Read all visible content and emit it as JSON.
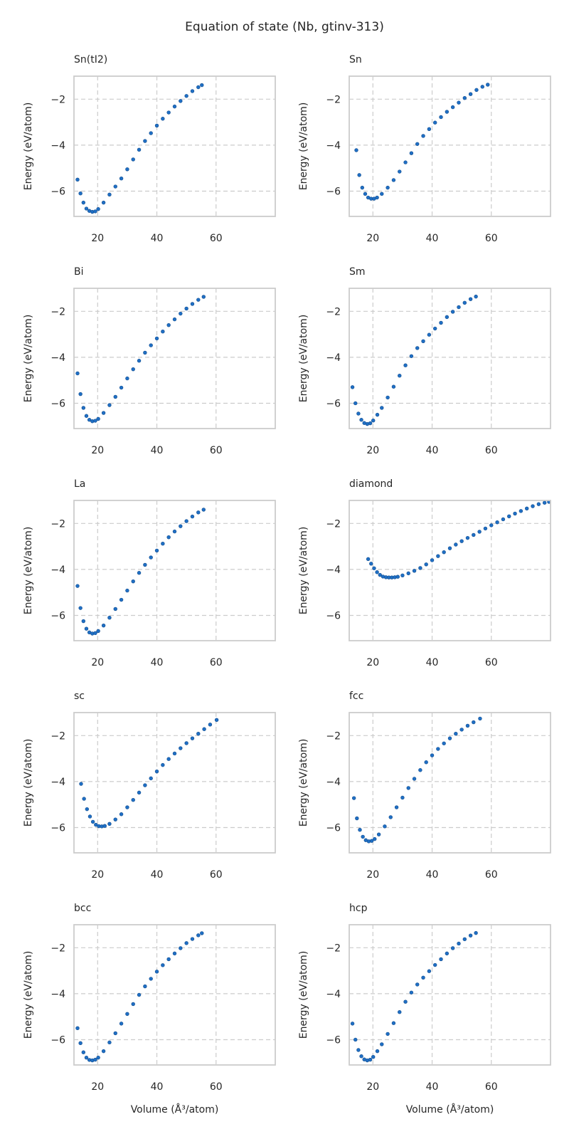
{
  "figure": {
    "title": "Equation of state (Nb, gtinv-313)"
  },
  "style": {
    "point_color": "#1f6fc5",
    "point_edge_color": "#154f8f",
    "grid_color": "#cccccc",
    "spine_color": "#cccccc",
    "text_color": "#262626"
  },
  "chart_data": [
    {
      "type": "scatter",
      "title": "Sn(tI2)",
      "xlabel": "",
      "ylabel": "Energy (eV/atom)",
      "xlim": [
        12,
        80
      ],
      "ylim": [
        -7.1,
        -1.0
      ],
      "xticks": [
        20,
        40,
        60
      ],
      "yticks": [
        -6,
        -4,
        -2
      ],
      "grid": true,
      "series": [
        {
          "x": [
            13.2,
            14.2,
            15.2,
            16.2,
            17.2,
            18.2,
            19.2,
            20.2,
            22,
            24,
            26,
            28,
            30,
            32,
            34,
            36,
            38,
            40,
            42,
            44,
            46,
            48,
            50,
            52,
            54,
            55.2
          ],
          "y": [
            -5.5,
            -6.1,
            -6.5,
            -6.76,
            -6.86,
            -6.9,
            -6.88,
            -6.78,
            -6.5,
            -6.15,
            -5.8,
            -5.45,
            -5.05,
            -4.62,
            -4.2,
            -3.82,
            -3.48,
            -3.15,
            -2.85,
            -2.58,
            -2.32,
            -2.08,
            -1.86,
            -1.65,
            -1.48,
            -1.39
          ]
        }
      ]
    },
    {
      "type": "scatter",
      "title": "Sn",
      "xlabel": "",
      "ylabel": "Energy (eV/atom)",
      "xlim": [
        12,
        80
      ],
      "ylim": [
        -7.1,
        -1.0
      ],
      "xticks": [
        20,
        40,
        60
      ],
      "yticks": [
        -6,
        -4,
        -2
      ],
      "grid": true,
      "series": [
        {
          "x": [
            14.4,
            15.4,
            16.4,
            17.4,
            18.4,
            19.4,
            20.4,
            21.4,
            23,
            25,
            27,
            29,
            31,
            33,
            35,
            37,
            39,
            41,
            43,
            45,
            47,
            49,
            51,
            53,
            55,
            57,
            58.8
          ],
          "y": [
            -4.22,
            -5.3,
            -5.85,
            -6.12,
            -6.28,
            -6.33,
            -6.33,
            -6.28,
            -6.12,
            -5.85,
            -5.52,
            -5.15,
            -4.75,
            -4.35,
            -3.95,
            -3.6,
            -3.3,
            -3.02,
            -2.78,
            -2.55,
            -2.35,
            -2.15,
            -1.95,
            -1.78,
            -1.6,
            -1.46,
            -1.37
          ]
        }
      ]
    },
    {
      "type": "scatter",
      "title": "Bi",
      "xlabel": "",
      "ylabel": "Energy (eV/atom)",
      "xlim": [
        12,
        80
      ],
      "ylim": [
        -7.1,
        -1.0
      ],
      "xticks": [
        20,
        40,
        60
      ],
      "yticks": [
        -6,
        -4,
        -2
      ],
      "grid": true,
      "series": [
        {
          "x": [
            13.2,
            14.2,
            15.2,
            16.2,
            17.2,
            18.2,
            19.2,
            20.2,
            22,
            24,
            26,
            28,
            30,
            32,
            34,
            36,
            38,
            40,
            42,
            44,
            46,
            48,
            50,
            52,
            54,
            55.8
          ],
          "y": [
            -4.7,
            -5.6,
            -6.2,
            -6.55,
            -6.72,
            -6.78,
            -6.76,
            -6.68,
            -6.42,
            -6.08,
            -5.72,
            -5.32,
            -4.92,
            -4.52,
            -4.15,
            -3.8,
            -3.48,
            -3.18,
            -2.88,
            -2.6,
            -2.35,
            -2.1,
            -1.88,
            -1.68,
            -1.5,
            -1.37
          ]
        }
      ]
    },
    {
      "type": "scatter",
      "title": "Sm",
      "xlabel": "",
      "ylabel": "Energy (eV/atom)",
      "xlim": [
        12,
        80
      ],
      "ylim": [
        -7.1,
        -1.0
      ],
      "xticks": [
        20,
        40,
        60
      ],
      "yticks": [
        -6,
        -4,
        -2
      ],
      "grid": true,
      "series": [
        {
          "x": [
            13.1,
            14.1,
            15.1,
            16.1,
            17.1,
            18.1,
            19.1,
            20.1,
            21.5,
            23,
            25,
            27,
            29,
            31,
            33,
            35,
            37,
            39,
            41,
            43,
            45,
            47,
            49,
            51,
            53,
            54.8
          ],
          "y": [
            -5.3,
            -6.0,
            -6.45,
            -6.72,
            -6.86,
            -6.9,
            -6.87,
            -6.75,
            -6.5,
            -6.2,
            -5.75,
            -5.28,
            -4.8,
            -4.35,
            -3.95,
            -3.6,
            -3.3,
            -3.02,
            -2.75,
            -2.5,
            -2.25,
            -2.02,
            -1.82,
            -1.63,
            -1.47,
            -1.36
          ]
        }
      ]
    },
    {
      "type": "scatter",
      "title": "La",
      "xlabel": "",
      "ylabel": "Energy (eV/atom)",
      "xlim": [
        12,
        80
      ],
      "ylim": [
        -7.1,
        -1.0
      ],
      "xticks": [
        20,
        40,
        60
      ],
      "yticks": [
        -6,
        -4,
        -2
      ],
      "grid": true,
      "series": [
        {
          "x": [
            13.2,
            14.2,
            15.2,
            16.2,
            17.2,
            18.2,
            19.2,
            20.2,
            22,
            24,
            26,
            28,
            30,
            32,
            34,
            36,
            38,
            40,
            42,
            44,
            46,
            48,
            50,
            52,
            54,
            55.8
          ],
          "y": [
            -4.72,
            -5.68,
            -6.25,
            -6.58,
            -6.74,
            -6.79,
            -6.77,
            -6.68,
            -6.44,
            -6.1,
            -5.72,
            -5.32,
            -4.92,
            -4.52,
            -4.15,
            -3.8,
            -3.48,
            -3.18,
            -2.88,
            -2.6,
            -2.35,
            -2.12,
            -1.9,
            -1.7,
            -1.52,
            -1.4
          ]
        }
      ]
    },
    {
      "type": "scatter",
      "title": "diamond",
      "xlabel": "",
      "ylabel": "Energy (eV/atom)",
      "xlim": [
        12,
        80
      ],
      "ylim": [
        -7.1,
        -1.0
      ],
      "xticks": [
        20,
        40,
        60
      ],
      "yticks": [
        -6,
        -4,
        -2
      ],
      "grid": true,
      "series": [
        {
          "x": [
            18.4,
            19.4,
            20.4,
            21.4,
            22.4,
            23.4,
            24.4,
            25.4,
            26.4,
            27.4,
            28.4,
            30,
            32,
            34,
            36,
            38,
            40,
            42,
            44,
            46,
            48,
            50,
            52,
            54,
            56,
            58,
            60,
            62,
            64,
            66,
            68,
            70,
            72,
            74,
            76,
            78,
            79.5
          ],
          "y": [
            -3.55,
            -3.75,
            -3.95,
            -4.12,
            -4.24,
            -4.31,
            -4.34,
            -4.35,
            -4.35,
            -4.34,
            -4.32,
            -4.26,
            -4.17,
            -4.06,
            -3.94,
            -3.78,
            -3.6,
            -3.42,
            -3.25,
            -3.08,
            -2.92,
            -2.77,
            -2.63,
            -2.5,
            -2.36,
            -2.22,
            -2.08,
            -1.95,
            -1.82,
            -1.69,
            -1.57,
            -1.46,
            -1.35,
            -1.25,
            -1.16,
            -1.1,
            -1.06
          ]
        }
      ]
    },
    {
      "type": "scatter",
      "title": "sc",
      "xlabel": "",
      "ylabel": "Energy (eV/atom)",
      "xlim": [
        12,
        80
      ],
      "ylim": [
        -7.1,
        -1.0
      ],
      "xticks": [
        20,
        40,
        60
      ],
      "yticks": [
        -6,
        -4,
        -2
      ],
      "grid": true,
      "series": [
        {
          "x": [
            14.4,
            15.4,
            16.4,
            17.4,
            18.4,
            19.4,
            20.4,
            21.4,
            22.4,
            24,
            26,
            28,
            30,
            32,
            34,
            36,
            38,
            40,
            42,
            44,
            46,
            48,
            50,
            52,
            54,
            56,
            58,
            60.2
          ],
          "y": [
            -4.1,
            -4.75,
            -5.2,
            -5.52,
            -5.75,
            -5.88,
            -5.94,
            -5.95,
            -5.93,
            -5.84,
            -5.65,
            -5.42,
            -5.12,
            -4.8,
            -4.48,
            -4.16,
            -3.86,
            -3.56,
            -3.28,
            -3.02,
            -2.78,
            -2.55,
            -2.33,
            -2.12,
            -1.92,
            -1.72,
            -1.52,
            -1.32
          ]
        }
      ]
    },
    {
      "type": "scatter",
      "title": "fcc",
      "xlabel": "",
      "ylabel": "Energy (eV/atom)",
      "xlim": [
        12,
        80
      ],
      "ylim": [
        -7.1,
        -1.0
      ],
      "xticks": [
        20,
        40,
        60
      ],
      "yticks": [
        -6,
        -4,
        -2
      ],
      "grid": true,
      "series": [
        {
          "x": [
            13.6,
            14.6,
            15.6,
            16.6,
            17.6,
            18.6,
            19.6,
            20.6,
            22,
            24,
            26,
            28,
            30,
            32,
            34,
            36,
            38,
            40,
            42,
            44,
            46,
            48,
            50,
            52,
            54,
            56.2
          ],
          "y": [
            -4.72,
            -5.6,
            -6.1,
            -6.4,
            -6.55,
            -6.6,
            -6.58,
            -6.5,
            -6.3,
            -5.95,
            -5.55,
            -5.12,
            -4.7,
            -4.28,
            -3.88,
            -3.5,
            -3.16,
            -2.86,
            -2.58,
            -2.34,
            -2.12,
            -1.92,
            -1.74,
            -1.57,
            -1.42,
            -1.26
          ]
        }
      ]
    },
    {
      "type": "scatter",
      "title": "bcc",
      "xlabel": "Volume (Å³/atom)",
      "ylabel": "Energy (eV/atom)",
      "xlim": [
        12,
        80
      ],
      "ylim": [
        -7.1,
        -1.0
      ],
      "xticks": [
        20,
        40,
        60
      ],
      "yticks": [
        -6,
        -4,
        -2
      ],
      "grid": true,
      "series": [
        {
          "x": [
            13.2,
            14.2,
            15.2,
            16.2,
            17.2,
            18.2,
            19.2,
            20.2,
            22,
            24,
            26,
            28,
            30,
            32,
            34,
            36,
            38,
            40,
            42,
            44,
            46,
            48,
            50,
            52,
            54,
            55.2
          ],
          "y": [
            -5.5,
            -6.15,
            -6.55,
            -6.78,
            -6.88,
            -6.9,
            -6.87,
            -6.78,
            -6.5,
            -6.12,
            -5.72,
            -5.3,
            -4.88,
            -4.45,
            -4.05,
            -3.68,
            -3.35,
            -3.04,
            -2.76,
            -2.5,
            -2.25,
            -2.02,
            -1.8,
            -1.62,
            -1.46,
            -1.37
          ]
        }
      ]
    },
    {
      "type": "scatter",
      "title": "hcp",
      "xlabel": "Volume (Å³/atom)",
      "ylabel": "Energy (eV/atom)",
      "xlim": [
        12,
        80
      ],
      "ylim": [
        -7.1,
        -1.0
      ],
      "xticks": [
        20,
        40,
        60
      ],
      "yticks": [
        -6,
        -4,
        -2
      ],
      "grid": true,
      "series": [
        {
          "x": [
            13.1,
            14.1,
            15.1,
            16.1,
            17.1,
            18.1,
            19.1,
            20.1,
            21.5,
            23,
            25,
            27,
            29,
            31,
            33,
            35,
            37,
            39,
            41,
            43,
            45,
            47,
            49,
            51,
            53,
            54.8
          ],
          "y": [
            -5.3,
            -6.0,
            -6.45,
            -6.72,
            -6.86,
            -6.9,
            -6.87,
            -6.75,
            -6.5,
            -6.2,
            -5.75,
            -5.28,
            -4.8,
            -4.35,
            -3.95,
            -3.6,
            -3.3,
            -3.02,
            -2.75,
            -2.5,
            -2.25,
            -2.02,
            -1.82,
            -1.63,
            -1.47,
            -1.36
          ]
        }
      ]
    }
  ]
}
